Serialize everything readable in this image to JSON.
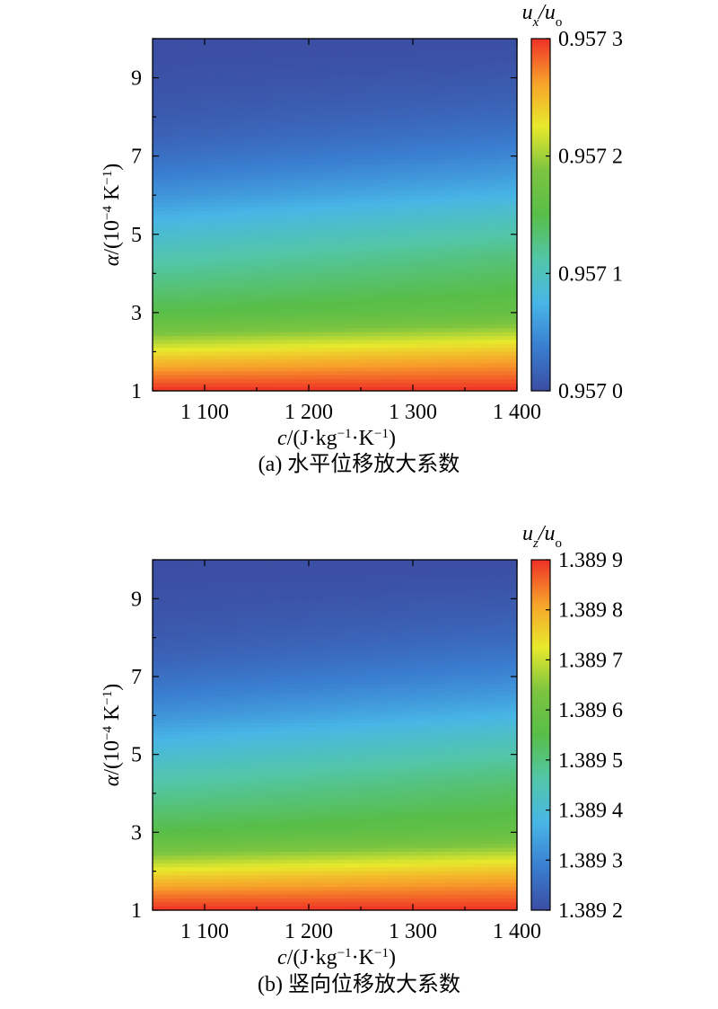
{
  "chart_data": [
    {
      "type": "heatmap",
      "caption": "(a) 水平位移放大系数",
      "xlabel_parts": [
        "c",
        "/(J·kg",
        "−1",
        "·K",
        "−1",
        ")"
      ],
      "ylabel_parts": [
        "α",
        "/(10",
        "−4",
        " K",
        "−1",
        ")"
      ],
      "colorbar_title": [
        "u",
        "x",
        "/u",
        "o"
      ],
      "xlim": [
        1050,
        1400
      ],
      "ylim": [
        1,
        10
      ],
      "x_ticks": [
        1100,
        1200,
        1300,
        1400
      ],
      "x_tick_labels": [
        "1 100",
        "1 200",
        "1 300",
        "1 400"
      ],
      "y_ticks": [
        1,
        3,
        5,
        7,
        9
      ],
      "y_tick_labels": [
        "1",
        "3",
        "5",
        "7",
        "9"
      ],
      "colorbar_range": [
        0.957,
        0.9573
      ],
      "colorbar_ticks": [
        0.957,
        0.9571,
        0.9572,
        0.9573
      ],
      "colorbar_tick_labels": [
        "0.957 0",
        "0.957 1",
        "0.957 2",
        "0.957 3"
      ],
      "colormap": [
        "#3b4ea3",
        "#3a7ed0",
        "#48b6e6",
        "#52c6a8",
        "#58be48",
        "#7cc440",
        "#e8e92c",
        "#f7a22b",
        "#ef3026"
      ],
      "field_x": [
        1050,
        1400
      ],
      "field_y": [
        1.0,
        1.4,
        1.8,
        2.2,
        2.6,
        3.0,
        3.5,
        4.0,
        4.5,
        5.0,
        5.5,
        6.0,
        6.5,
        7.0,
        7.5,
        8.0,
        8.5,
        9.0,
        9.5,
        10.0
      ],
      "field_values": [
        [
          0.9573,
          0.9573
        ],
        [
          0.957275,
          0.95728
        ],
        [
          0.957245,
          0.95726
        ],
        [
          0.95721,
          0.95723
        ],
        [
          0.957175,
          0.957195
        ],
        [
          0.95715,
          0.957165
        ],
        [
          0.957135,
          0.95715
        ],
        [
          0.95712,
          0.95714
        ],
        [
          0.957105,
          0.957128
        ],
        [
          0.957088,
          0.957112
        ],
        [
          0.95707,
          0.957095
        ],
        [
          0.957052,
          0.957075
        ],
        [
          0.957038,
          0.957058
        ],
        [
          0.957026,
          0.957044
        ],
        [
          0.957016,
          0.957032
        ],
        [
          0.95701,
          0.957022
        ],
        [
          0.957006,
          0.957014
        ],
        [
          0.957003,
          0.957008
        ],
        [
          0.957001,
          0.957003
        ],
        [
          0.957,
          0.957001
        ]
      ]
    },
    {
      "type": "heatmap",
      "caption": "(b) 竖向位移放大系数",
      "xlabel_parts": [
        "c",
        "/(J·kg",
        "−1",
        "·K",
        "−1",
        ")"
      ],
      "ylabel_parts": [
        "α",
        "/(10",
        "−4",
        " K",
        "−1",
        ")"
      ],
      "colorbar_title": [
        "u",
        "z",
        "/u",
        "o"
      ],
      "xlim": [
        1050,
        1400
      ],
      "ylim": [
        1,
        10
      ],
      "x_ticks": [
        1100,
        1200,
        1300,
        1400
      ],
      "x_tick_labels": [
        "1 100",
        "1 200",
        "1 300",
        "1 400"
      ],
      "y_ticks": [
        1,
        3,
        5,
        7,
        9
      ],
      "y_tick_labels": [
        "1",
        "3",
        "5",
        "7",
        "9"
      ],
      "colorbar_range": [
        1.3892,
        1.3899
      ],
      "colorbar_ticks": [
        1.3892,
        1.3893,
        1.3894,
        1.3895,
        1.3896,
        1.3897,
        1.3898,
        1.3899
      ],
      "colorbar_tick_labels": [
        "1.389 2",
        "1.389 3",
        "1.389 4",
        "1.389 5",
        "1.389 6",
        "1.389 7",
        "1.389 8",
        "1.389 9"
      ],
      "colormap": [
        "#3b4ea3",
        "#3a7ed0",
        "#48b6e6",
        "#52c6a8",
        "#58be48",
        "#7cc440",
        "#e8e92c",
        "#f7a22b",
        "#ef3026"
      ],
      "field_x": [
        1050,
        1400
      ],
      "field_y": [
        1.0,
        1.4,
        1.8,
        2.2,
        2.6,
        3.0,
        3.5,
        4.0,
        4.5,
        5.0,
        5.5,
        6.0,
        6.5,
        7.0,
        7.5,
        8.0,
        8.5,
        9.0,
        9.5,
        10.0
      ],
      "field_values": [
        [
          1.3899,
          1.3899
        ],
        [
          1.389842,
          1.389853
        ],
        [
          1.389772,
          1.389806
        ],
        [
          1.38969,
          1.389737
        ],
        [
          1.389608,
          1.389655
        ],
        [
          1.38955,
          1.389585
        ],
        [
          1.389515,
          1.38955
        ],
        [
          1.38948,
          1.389527
        ],
        [
          1.389445,
          1.389498
        ],
        [
          1.389405,
          1.389461
        ],
        [
          1.389363,
          1.389422
        ],
        [
          1.389321,
          1.389375
        ],
        [
          1.389289,
          1.389335
        ],
        [
          1.389261,
          1.389303
        ],
        [
          1.389237,
          1.389275
        ],
        [
          1.389223,
          1.389251
        ],
        [
          1.389214,
          1.389233
        ],
        [
          1.389207,
          1.389219
        ],
        [
          1.389202,
          1.389207
        ],
        [
          1.3892,
          1.389202
        ]
      ]
    }
  ]
}
